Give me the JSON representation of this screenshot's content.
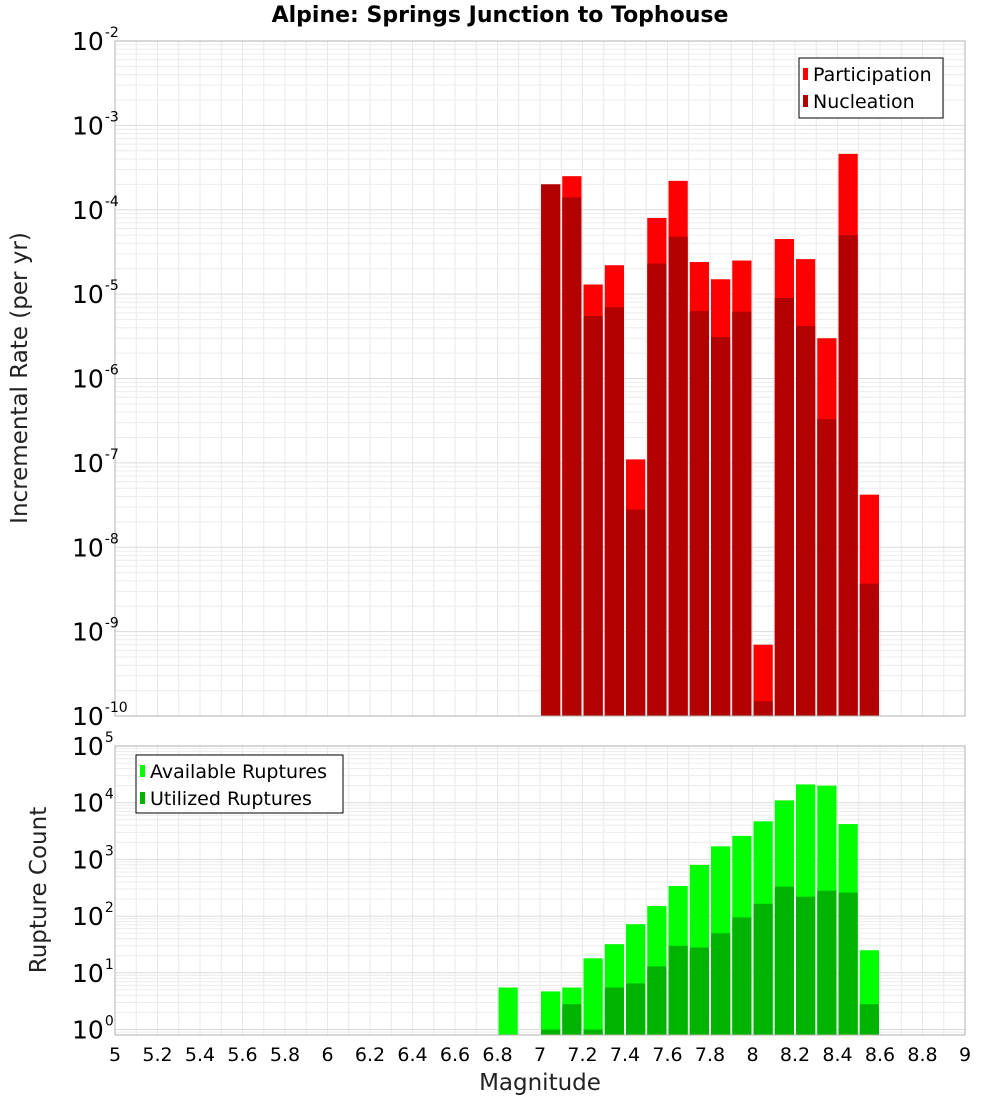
{
  "chart_data": [
    {
      "type": "bar",
      "title": "Alpine: Springs Junction to Tophouse",
      "ylabel": "Incremental Rate (per yr)",
      "yscale": "log",
      "ylim": [
        1e-10,
        0.01
      ],
      "ytick_exponents": [
        -10,
        -9,
        -8,
        -7,
        -6,
        -5,
        -4,
        -3,
        -2
      ],
      "xlim": [
        5,
        9
      ],
      "grid": true,
      "legend_position": "top-right",
      "x": [
        7.05,
        7.15,
        7.25,
        7.35,
        7.45,
        7.55,
        7.65,
        7.75,
        7.85,
        7.95,
        8.05,
        8.15,
        8.25,
        8.35,
        8.45,
        8.55
      ],
      "series": [
        {
          "name": "Participation",
          "color": "#ff0000",
          "values": [
            0.0002,
            0.00025,
            1.3e-05,
            2.2e-05,
            1.1e-07,
            8e-05,
            0.00022,
            2.4e-05,
            1.5e-05,
            2.5e-05,
            7e-10,
            4.5e-05,
            2.6e-05,
            3e-06,
            0.00046,
            4.2e-08
          ]
        },
        {
          "name": "Nucleation",
          "color": "#b30000",
          "values": [
            0.0002,
            0.00014,
            5.5e-06,
            7e-06,
            2.8e-08,
            2.3e-05,
            4.8e-05,
            6.3e-06,
            3.1e-06,
            6.2e-06,
            1.5e-10,
            9e-06,
            4.2e-06,
            3.3e-07,
            5e-05,
            3.7e-09
          ]
        }
      ]
    },
    {
      "type": "bar",
      "title": "",
      "xlabel": "Magnitude",
      "ylabel": "Rupture Count",
      "yscale": "log",
      "ylim": [
        0.8,
        100000.0
      ],
      "ytick_exponents": [
        0,
        1,
        2,
        3,
        4,
        5
      ],
      "xlim": [
        5,
        9
      ],
      "xticks": [
        "5",
        "5.2",
        "5.4",
        "5.6",
        "5.8",
        "6",
        "6.2",
        "6.4",
        "6.6",
        "6.8",
        "7",
        "7.2",
        "7.4",
        "7.6",
        "7.8",
        "8",
        "8.2",
        "8.4",
        "8.6",
        "8.8",
        "9"
      ],
      "grid": true,
      "legend_position": "top-left",
      "x": [
        6.85,
        7.05,
        7.15,
        7.25,
        7.35,
        7.45,
        7.55,
        7.65,
        7.75,
        7.85,
        7.95,
        8.05,
        8.15,
        8.25,
        8.35,
        8.45,
        8.55
      ],
      "series": [
        {
          "name": "Available Ruptures",
          "color": "#00ff00",
          "values": [
            5.5,
            4.7,
            5.5,
            18,
            32,
            72,
            150,
            340,
            800,
            1700,
            2600,
            4700,
            11000,
            21000,
            20000,
            4200,
            25
          ]
        },
        {
          "name": "Utilized Ruptures",
          "color": "#00b300",
          "values": [
            0,
            1,
            2.8,
            1,
            5.5,
            6.5,
            13,
            30,
            28,
            50,
            95,
            165,
            330,
            220,
            280,
            260,
            2.8
          ]
        }
      ]
    }
  ]
}
